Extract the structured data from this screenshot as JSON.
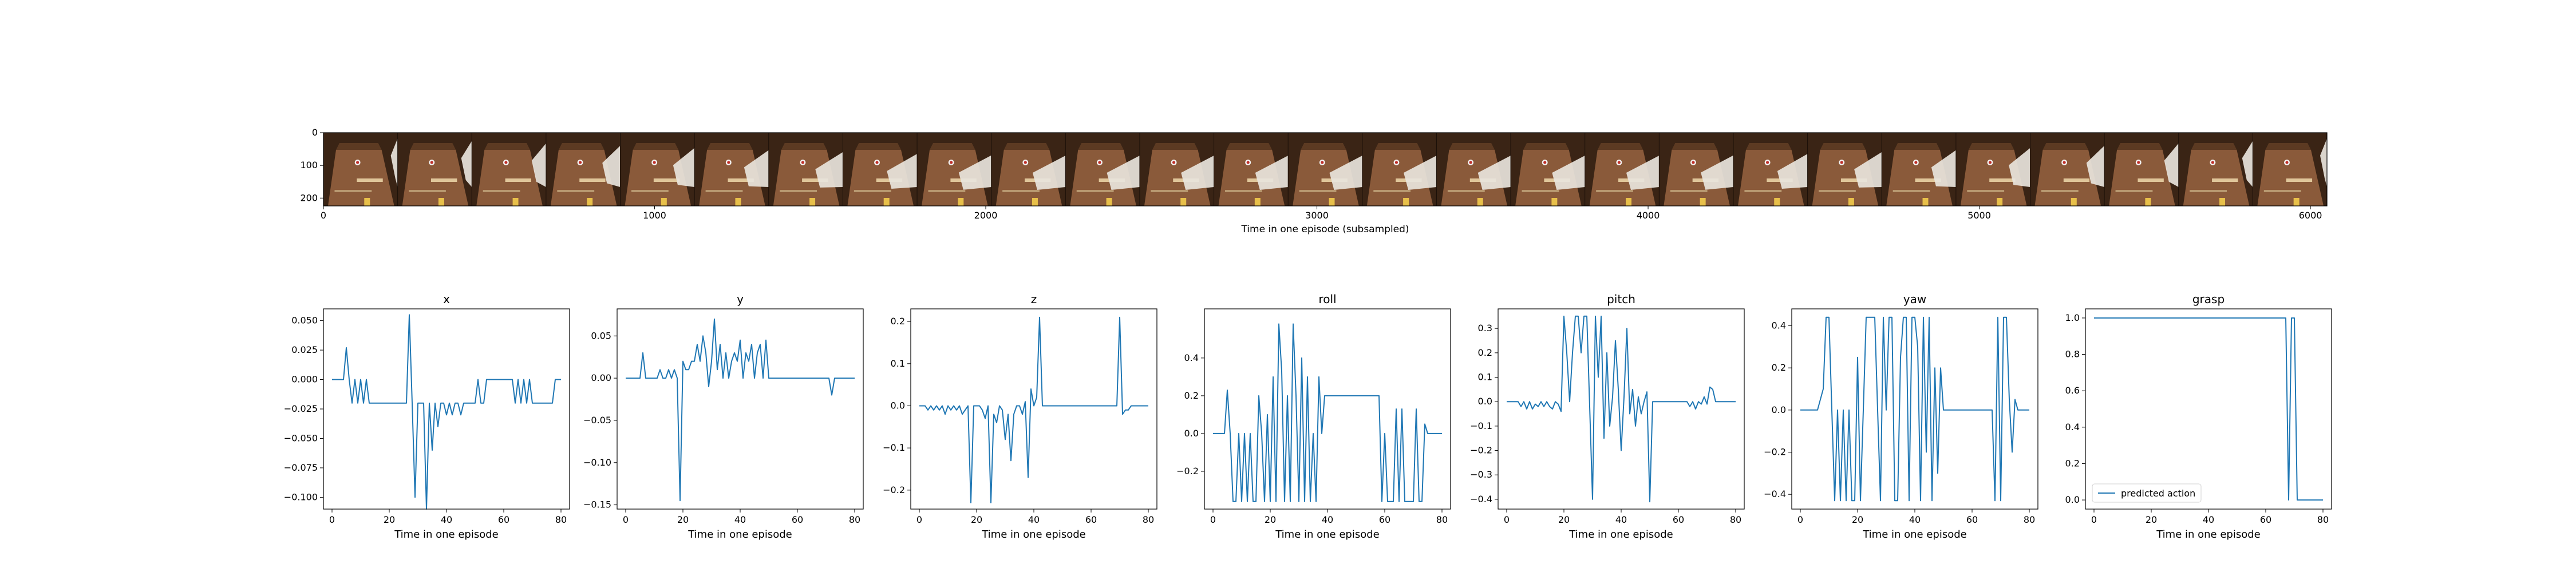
{
  "colors": {
    "line": "#1f77b4",
    "frame": "#000000",
    "background": "#ffffff"
  },
  "filmstrip": {
    "xlabel": "Time in one episode (subsampled)",
    "xticks": [
      "0",
      "1000",
      "2000",
      "3000",
      "4000",
      "5000",
      "6000"
    ],
    "yticks": [
      "0",
      "100",
      "200"
    ],
    "frame_count": 27,
    "image_description": "wooden table with red-dot marker, tan cloth, white robot gripper appearing from right side"
  },
  "chart_data": [
    {
      "type": "line",
      "title": "x",
      "xlabel": "Time in one episode",
      "xlim": [
        -3,
        83
      ],
      "ylim": [
        -0.11,
        0.06
      ],
      "xticks": [
        0,
        20,
        40,
        60,
        80
      ],
      "yticks": [
        0.05,
        0.025,
        0.0,
        -0.025,
        -0.05,
        -0.075,
        -0.1
      ],
      "ytick_labels": [
        "0.050",
        "0.025",
        "0.000",
        "−0.025",
        "−0.050",
        "−0.075",
        "−0.100"
      ],
      "series": [
        {
          "values": [
            0,
            0,
            0,
            0,
            0,
            0.027,
            0,
            -0.02,
            0,
            -0.02,
            0,
            -0.02,
            0,
            -0.02,
            -0.02,
            -0.02,
            -0.02,
            -0.02,
            -0.02,
            -0.02,
            -0.02,
            -0.02,
            -0.02,
            -0.02,
            -0.02,
            -0.02,
            -0.02,
            0.055,
            -0.02,
            -0.1,
            -0.02,
            -0.02,
            -0.02,
            -0.11,
            -0.02,
            -0.06,
            -0.02,
            -0.04,
            -0.02,
            -0.02,
            -0.03,
            -0.02,
            -0.03,
            -0.02,
            -0.02,
            -0.03,
            -0.02,
            -0.02,
            -0.02,
            -0.02,
            -0.02,
            0,
            -0.02,
            -0.02,
            0,
            0,
            0,
            0,
            0,
            0,
            0,
            0,
            0,
            0,
            -0.02,
            0,
            -0.02,
            0,
            -0.02,
            0,
            -0.02,
            -0.02,
            -0.02,
            -0.02,
            -0.02,
            -0.02,
            -0.02,
            -0.02,
            0,
            0,
            0
          ]
        }
      ]
    },
    {
      "type": "line",
      "title": "y",
      "xlabel": "Time in one episode",
      "xlim": [
        -3,
        83
      ],
      "ylim": [
        -0.155,
        0.082
      ],
      "xticks": [
        0,
        20,
        40,
        60,
        80
      ],
      "yticks": [
        0.05,
        0.0,
        -0.05,
        -0.1,
        -0.15
      ],
      "ytick_labels": [
        "0.05",
        "0.00",
        "−0.05",
        "−0.10",
        "−0.15"
      ],
      "series": [
        {
          "values": [
            0,
            0,
            0,
            0,
            0,
            0,
            0.03,
            0,
            0,
            0,
            0,
            0,
            0.01,
            0,
            0,
            0.01,
            0,
            0.01,
            0,
            -0.145,
            0.02,
            0.01,
            0.01,
            0.02,
            0.02,
            0.04,
            0.02,
            0.05,
            0.03,
            -0.01,
            0.02,
            0.07,
            0.01,
            0.04,
            0,
            0.03,
            0,
            0.02,
            0.03,
            0.02,
            0.045,
            0,
            0.03,
            0.02,
            0.04,
            0,
            0.03,
            0.04,
            0,
            0.045,
            0,
            0,
            0,
            0,
            0,
            0,
            0,
            0,
            0,
            0,
            0,
            0,
            0,
            0,
            0,
            0,
            0,
            0,
            0,
            0,
            0,
            0,
            -0.02,
            0,
            0,
            0,
            0,
            0,
            0,
            0,
            0
          ]
        }
      ]
    },
    {
      "type": "line",
      "title": "z",
      "xlabel": "Time in one episode",
      "xlim": [
        -3,
        83
      ],
      "ylim": [
        -0.245,
        0.23
      ],
      "xticks": [
        0,
        20,
        40,
        60,
        80
      ],
      "yticks": [
        0.2,
        0.1,
        0.0,
        -0.1,
        -0.2
      ],
      "ytick_labels": [
        "0.2",
        "0.1",
        "0.0",
        "−0.1",
        "−0.2"
      ],
      "series": [
        {
          "values": [
            0,
            0,
            0,
            -0.01,
            0,
            -0.01,
            0,
            -0.01,
            0,
            -0.02,
            0,
            -0.01,
            0,
            -0.01,
            0,
            -0.02,
            -0.01,
            0,
            -0.23,
            0,
            0,
            0,
            -0.01,
            -0.03,
            0,
            -0.23,
            -0.02,
            -0.04,
            0,
            -0.01,
            -0.08,
            -0.02,
            -0.13,
            -0.02,
            0,
            0,
            -0.02,
            0.01,
            -0.17,
            0.04,
            0,
            0.02,
            0.21,
            0,
            0,
            0,
            0,
            0,
            0,
            0,
            0,
            0,
            0,
            0,
            0,
            0,
            0,
            0,
            0,
            0,
            0,
            0,
            0,
            0,
            0,
            0,
            0,
            0,
            0,
            0,
            0.21,
            -0.02,
            -0.01,
            -0.01,
            0,
            0,
            0,
            0,
            0,
            0,
            0
          ]
        }
      ]
    },
    {
      "type": "line",
      "title": "roll",
      "xlabel": "Time in one episode",
      "xlim": [
        -3,
        83
      ],
      "ylim": [
        -0.4,
        0.66
      ],
      "xticks": [
        0,
        20,
        40,
        60,
        80
      ],
      "yticks": [
        0.4,
        0.2,
        0.0,
        -0.2
      ],
      "ytick_labels": [
        "0.4",
        "0.2",
        "0.0",
        "−0.2"
      ],
      "series": [
        {
          "values": [
            0,
            0,
            0,
            0,
            0,
            0.23,
            0,
            -0.36,
            -0.36,
            0,
            -0.36,
            0,
            -0.36,
            0,
            -0.36,
            -0.36,
            0.2,
            0,
            -0.36,
            0.1,
            -0.36,
            0.3,
            -0.36,
            0.58,
            0.33,
            -0.36,
            0.2,
            -0.36,
            0.58,
            0.2,
            -0.36,
            0.4,
            -0.36,
            0.3,
            -0.36,
            0,
            -0.36,
            0.3,
            0,
            0.2,
            0.2,
            0.2,
            0.2,
            0.2,
            0.2,
            0.2,
            0.2,
            0.2,
            0.2,
            0.2,
            0.2,
            0.2,
            0.2,
            0.2,
            0.2,
            0.2,
            0.2,
            0.2,
            0.2,
            -0.36,
            0,
            -0.36,
            -0.36,
            -0.36,
            0.13,
            -0.36,
            0.13,
            -0.36,
            -0.36,
            -0.36,
            -0.36,
            0.13,
            -0.36,
            -0.36,
            0.05,
            0,
            0,
            0,
            0,
            0,
            0
          ]
        }
      ]
    },
    {
      "type": "line",
      "title": "pitch",
      "xlabel": "Time in one episode",
      "xlim": [
        -3,
        83
      ],
      "ylim": [
        -0.44,
        0.38
      ],
      "xticks": [
        0,
        20,
        40,
        60,
        80
      ],
      "yticks": [
        0.3,
        0.2,
        0.1,
        0.0,
        -0.1,
        -0.2,
        -0.3,
        -0.4
      ],
      "ytick_labels": [
        "0.3",
        "0.2",
        "0.1",
        "0.0",
        "−0.1",
        "−0.2",
        "−0.3",
        "−0.4"
      ],
      "series": [
        {
          "values": [
            0,
            0,
            0,
            0,
            0,
            -0.02,
            0,
            -0.03,
            0,
            -0.03,
            -0.01,
            -0.02,
            0,
            -0.02,
            0,
            -0.02,
            -0.03,
            0,
            -0.01,
            -0.04,
            0.35,
            0.2,
            0,
            0.2,
            0.35,
            0.35,
            0.2,
            0.35,
            0.35,
            -0.02,
            -0.4,
            0.35,
            0.1,
            0.35,
            -0.15,
            0.2,
            -0.1,
            0.02,
            0.25,
            0.05,
            -0.2,
            0.02,
            0.3,
            -0.05,
            0.05,
            -0.1,
            0.02,
            -0.05,
            0,
            0.04,
            -0.41,
            0,
            0,
            0,
            0,
            0,
            0,
            0,
            0,
            0,
            0,
            0,
            0,
            0,
            -0.02,
            0,
            -0.03,
            0,
            -0.01,
            0.02,
            -0.01,
            0.06,
            0.05,
            0,
            0,
            0,
            0,
            0,
            0,
            0,
            0
          ]
        }
      ]
    },
    {
      "type": "line",
      "title": "yaw",
      "xlabel": "Time in one episode",
      "xlim": [
        -3,
        83
      ],
      "ylim": [
        -0.47,
        0.48
      ],
      "xticks": [
        0,
        20,
        40,
        60,
        80
      ],
      "yticks": [
        0.4,
        0.2,
        0.0,
        -0.2,
        -0.4
      ],
      "ytick_labels": [
        "0.4",
        "0.2",
        "0.0",
        "−0.2",
        "−0.4"
      ],
      "series": [
        {
          "values": [
            0,
            0,
            0,
            0,
            0,
            0,
            0,
            0.05,
            0.1,
            0.44,
            0.44,
            0,
            -0.43,
            0,
            -0.43,
            0,
            -0.43,
            0,
            -0.43,
            -0.43,
            0.25,
            -0.43,
            0,
            0.44,
            0.44,
            0.44,
            0.44,
            0,
            -0.43,
            0.44,
            0,
            0.44,
            0.44,
            -0.43,
            -0.43,
            0.25,
            0.44,
            0.44,
            -0.43,
            0.44,
            0.44,
            0.3,
            -0.43,
            0.44,
            -0.2,
            0.44,
            -0.43,
            0.2,
            -0.3,
            0.2,
            0,
            0,
            0,
            0,
            0,
            0,
            0,
            0,
            0,
            0,
            0,
            0,
            0,
            0,
            0,
            0,
            0,
            0,
            -0.43,
            0.44,
            -0.43,
            0.44,
            0.44,
            0.05,
            -0.2,
            0.05,
            0,
            0,
            0,
            0,
            0
          ]
        }
      ]
    },
    {
      "type": "line",
      "title": "grasp",
      "xlabel": "Time in one episode",
      "xlim": [
        -3,
        83
      ],
      "ylim": [
        -0.05,
        1.05
      ],
      "xticks": [
        0,
        20,
        40,
        60,
        80
      ],
      "yticks": [
        1.0,
        0.8,
        0.6,
        0.4,
        0.2,
        0.0
      ],
      "ytick_labels": [
        "1.0",
        "0.8",
        "0.6",
        "0.4",
        "0.2",
        "0.0"
      ],
      "legend": "predicted action",
      "legend_position": "lower-left",
      "series": [
        {
          "name": "predicted action",
          "values": [
            1,
            1,
            1,
            1,
            1,
            1,
            1,
            1,
            1,
            1,
            1,
            1,
            1,
            1,
            1,
            1,
            1,
            1,
            1,
            1,
            1,
            1,
            1,
            1,
            1,
            1,
            1,
            1,
            1,
            1,
            1,
            1,
            1,
            1,
            1,
            1,
            1,
            1,
            1,
            1,
            1,
            1,
            1,
            1,
            1,
            1,
            1,
            1,
            1,
            1,
            1,
            1,
            1,
            1,
            1,
            1,
            1,
            1,
            1,
            1,
            1,
            1,
            1,
            1,
            1,
            1,
            1,
            1,
            0,
            1,
            1,
            0,
            0,
            0,
            0,
            0,
            0,
            0,
            0,
            0,
            0
          ]
        }
      ]
    }
  ]
}
